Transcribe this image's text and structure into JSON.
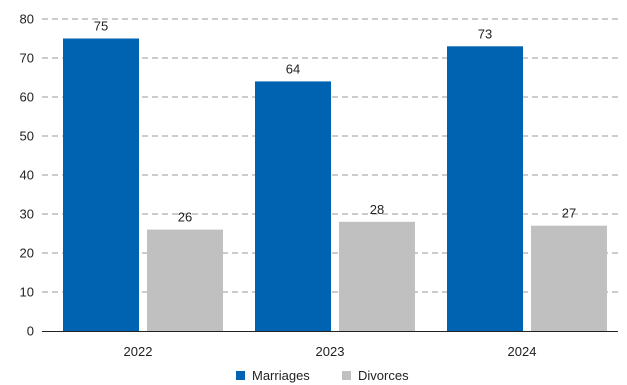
{
  "chart_data": {
    "type": "bar",
    "categories": [
      "2022",
      "2023",
      "2024"
    ],
    "series": [
      {
        "name": "Marriages",
        "values": [
          75,
          64,
          73
        ],
        "color": "#0063b1"
      },
      {
        "name": "Divorces",
        "values": [
          26,
          28,
          27
        ],
        "color": "#c0c0c0"
      }
    ],
    "title": "",
    "xlabel": "",
    "ylabel": "",
    "ylim": [
      0,
      80
    ],
    "yticks": [
      "0",
      "10",
      "20",
      "30",
      "40",
      "50",
      "60",
      "70",
      "80"
    ],
    "grid": true,
    "legend_placement": "bottom-center"
  }
}
